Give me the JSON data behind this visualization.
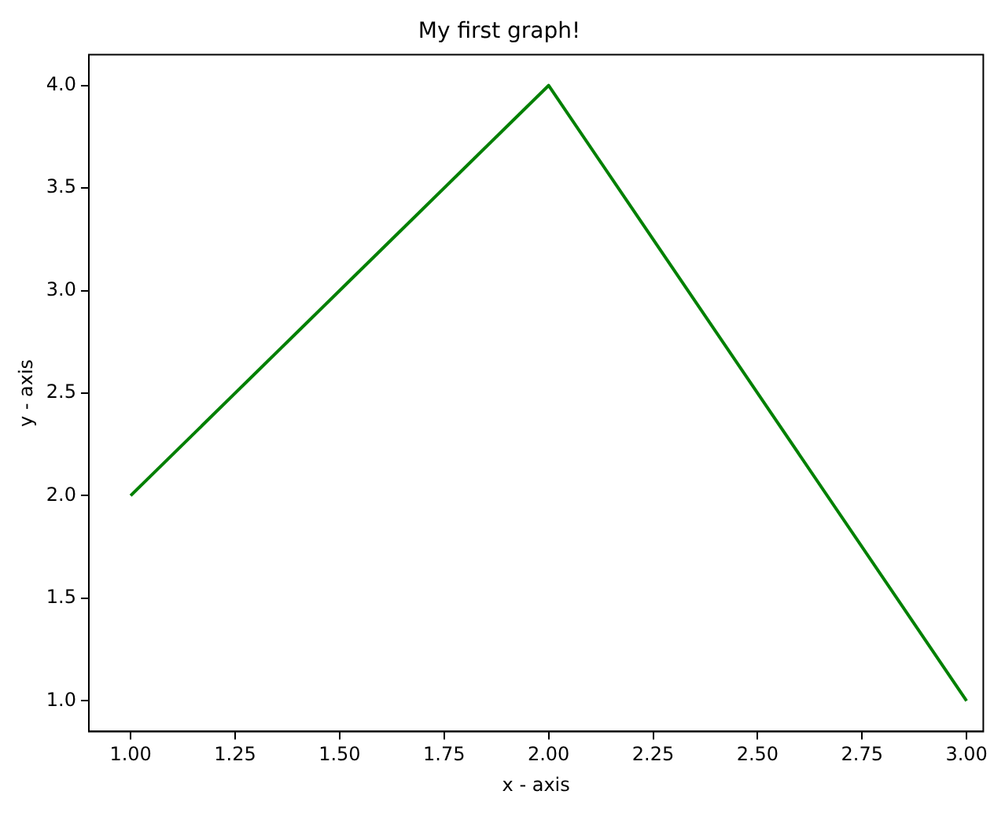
{
  "chart_data": {
    "type": "line",
    "title": "My first graph!",
    "xlabel": "x - axis",
    "ylabel": "y - axis",
    "x": [
      1,
      2,
      3
    ],
    "series": [
      {
        "color": "#008000",
        "values": [
          2,
          4,
          1
        ]
      }
    ],
    "xlim": [
      0.9,
      3.04
    ],
    "ylim": [
      0.85,
      4.15
    ],
    "xticks": [
      {
        "value": 1,
        "label": "1.00"
      },
      {
        "value": 1.25,
        "label": "1.25"
      },
      {
        "value": 1.5,
        "label": "1.50"
      },
      {
        "value": 1.75,
        "label": "1.75"
      },
      {
        "value": 2,
        "label": "2.00"
      },
      {
        "value": 2.25,
        "label": "2.25"
      },
      {
        "value": 2.5,
        "label": "2.50"
      },
      {
        "value": 2.75,
        "label": "2.75"
      },
      {
        "value": 3,
        "label": "3.00"
      }
    ],
    "yticks": [
      {
        "value": 1,
        "label": "1.0"
      },
      {
        "value": 1.5,
        "label": "1.5"
      },
      {
        "value": 2,
        "label": "2.0"
      },
      {
        "value": 2.5,
        "label": "2.5"
      },
      {
        "value": 3,
        "label": "3.0"
      },
      {
        "value": 3.5,
        "label": "3.5"
      },
      {
        "value": 4,
        "label": "4.0"
      }
    ],
    "grid": false,
    "legend": false,
    "marker": "none",
    "line_style": "solid"
  }
}
